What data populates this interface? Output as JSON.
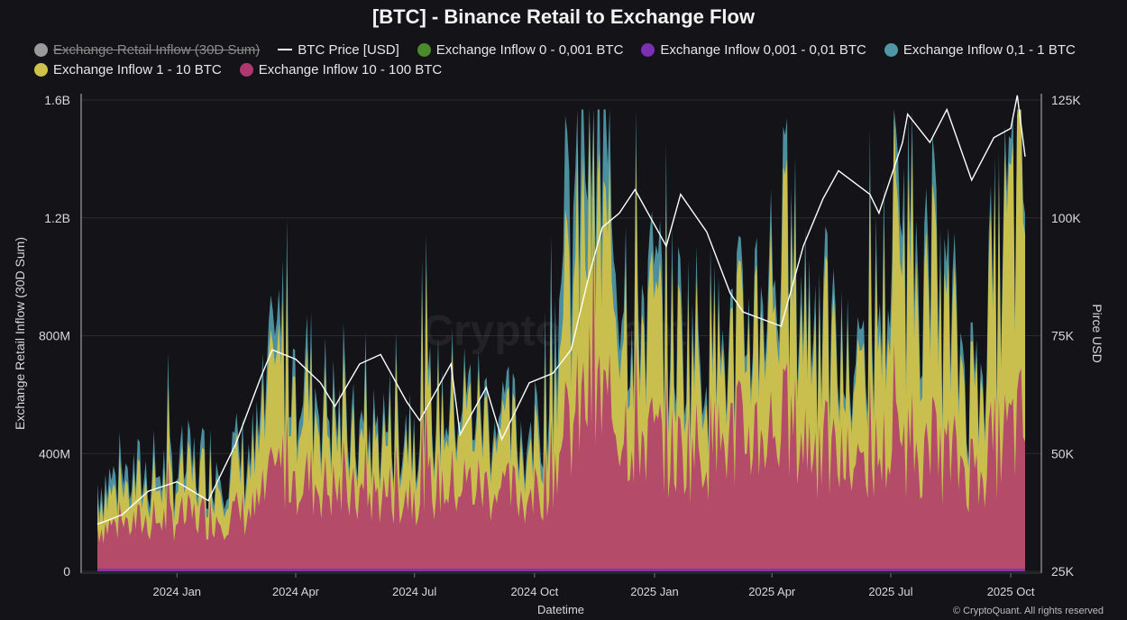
{
  "chart_data": {
    "type": "area",
    "title": "[BTC] - Binance Retail to Exchange Flow",
    "xlabel": "Datetime",
    "ylabel_left": "Exchange Retail Inflow (30D Sum)",
    "ylabel_right": "Pirce USD",
    "ylim_left": [
      0,
      1600000000
    ],
    "ylim_right": [
      25000,
      125000
    ],
    "left_ticks": [
      "0",
      "400M",
      "800M",
      "1.2B",
      "1.6B"
    ],
    "right_ticks": [
      "25K",
      "50K",
      "75K",
      "100K",
      "125K"
    ],
    "x_ticks": [
      "2024 Jan",
      "2024 Apr",
      "2024 Jul",
      "2024 Oct",
      "2025 Jan",
      "2025 Apr",
      "2025 Jul",
      "2025 Oct"
    ],
    "x_range": [
      "2023-11-01",
      "2025-10-12"
    ],
    "legend": [
      {
        "name": "Exchange Retail Inflow (30D Sum)",
        "color": "#9a9a9a",
        "style": "dot",
        "disabled": true
      },
      {
        "name": "BTC Price [USD]",
        "color": "#ffffff",
        "style": "line",
        "disabled": false
      },
      {
        "name": "Exchange Inflow 0 - 0,001 BTC",
        "color": "#4c8a2e",
        "style": "dot",
        "disabled": false
      },
      {
        "name": "Exchange Inflow 0,001 - 0,01 BTC",
        "color": "#7b2fb2",
        "style": "dot",
        "disabled": false
      },
      {
        "name": "Exchange Inflow 0,1 - 1 BTC",
        "color": "#4f97a7",
        "style": "dot",
        "disabled": false
      },
      {
        "name": "Exchange Inflow 1 - 10 BTC",
        "color": "#cfc24a",
        "style": "dot",
        "disabled": false
      },
      {
        "name": "Exchange Inflow 10 - 100 BTC",
        "color": "#b0376f",
        "style": "dot",
        "disabled": false
      }
    ],
    "series": [
      {
        "name": "BTC Price [USD]",
        "axis": "right",
        "type": "line",
        "x": [
          "2023-11-01",
          "2023-11-20",
          "2023-12-10",
          "2024-01-01",
          "2024-01-25",
          "2024-02-15",
          "2024-03-05",
          "2024-03-14",
          "2024-04-01",
          "2024-04-20",
          "2024-05-01",
          "2024-05-20",
          "2024-06-05",
          "2024-06-25",
          "2024-07-05",
          "2024-07-29",
          "2024-08-05",
          "2024-08-25",
          "2024-09-06",
          "2024-09-27",
          "2024-10-15",
          "2024-10-29",
          "2024-11-12",
          "2024-11-22",
          "2024-12-05",
          "2024-12-17",
          "2025-01-10",
          "2025-01-21",
          "2025-02-10",
          "2025-02-28",
          "2025-03-10",
          "2025-04-08",
          "2025-04-25",
          "2025-05-10",
          "2025-05-22",
          "2025-06-15",
          "2025-06-22",
          "2025-07-10",
          "2025-07-14",
          "2025-07-31",
          "2025-08-13",
          "2025-09-01",
          "2025-09-18",
          "2025-10-01",
          "2025-10-06",
          "2025-10-12"
        ],
        "values": [
          35000,
          37000,
          42000,
          44000,
          40000,
          52000,
          66000,
          72000,
          70000,
          65000,
          60000,
          69000,
          71000,
          61000,
          57000,
          69000,
          54000,
          64000,
          53000,
          65000,
          67000,
          72000,
          88000,
          98000,
          101000,
          106000,
          94000,
          105000,
          97000,
          84000,
          80000,
          77000,
          94000,
          104000,
          110000,
          105000,
          101000,
          116000,
          122000,
          116000,
          123000,
          108000,
          117000,
          119000,
          126000,
          113000
        ]
      },
      {
        "name": "Exchange Inflow 10 - 100 BTC",
        "axis": "left",
        "type": "area",
        "x": [
          "2023-11-01",
          "2024-01-01",
          "2024-03-01",
          "2024-03-20",
          "2024-05-15",
          "2024-08-05",
          "2024-10-01",
          "2024-11-12",
          "2024-12-10",
          "2025-01-15",
          "2025-03-01",
          "2025-04-07",
          "2025-06-01",
          "2025-07-15",
          "2025-09-01",
          "2025-10-10"
        ],
        "values": [
          150000000,
          180000000,
          200000000,
          350000000,
          250000000,
          300000000,
          250000000,
          600000000,
          500000000,
          400000000,
          450000000,
          500000000,
          350000000,
          450000000,
          350000000,
          500000000
        ]
      },
      {
        "name": "Exchange Inflow 1 - 10 BTC",
        "axis": "left",
        "type": "area",
        "x": [
          "2023-11-01",
          "2024-01-01",
          "2024-03-01",
          "2024-03-20",
          "2024-05-15",
          "2024-08-05",
          "2024-10-01",
          "2024-11-12",
          "2024-12-10",
          "2025-01-15",
          "2025-03-01",
          "2025-04-07",
          "2025-06-01",
          "2025-07-15",
          "2025-09-01",
          "2025-10-10"
        ],
        "values": [
          250000000,
          300000000,
          350000000,
          700000000,
          400000000,
          550000000,
          400000000,
          1200000000,
          900000000,
          750000000,
          700000000,
          1000000000,
          600000000,
          1100000000,
          600000000,
          1300000000
        ]
      },
      {
        "name": "Exchange Inflow 0,1 - 1 BTC",
        "axis": "left",
        "type": "area",
        "x": [
          "2023-11-01",
          "2024-01-01",
          "2024-03-01",
          "2024-03-20",
          "2024-05-15",
          "2024-08-05",
          "2024-10-01",
          "2024-11-12",
          "2024-12-10",
          "2025-01-15",
          "2025-03-01",
          "2025-04-07",
          "2025-06-01",
          "2025-07-15",
          "2025-09-01",
          "2025-10-10"
        ],
        "values": [
          300000000,
          350000000,
          400000000,
          800000000,
          450000000,
          600000000,
          450000000,
          1550000000,
          1000000000,
          850000000,
          750000000,
          1100000000,
          650000000,
          1250000000,
          650000000,
          1380000000
        ]
      }
    ]
  },
  "watermark": "CryptoQuant",
  "copyright": "© CryptoQuant. All rights reserved"
}
